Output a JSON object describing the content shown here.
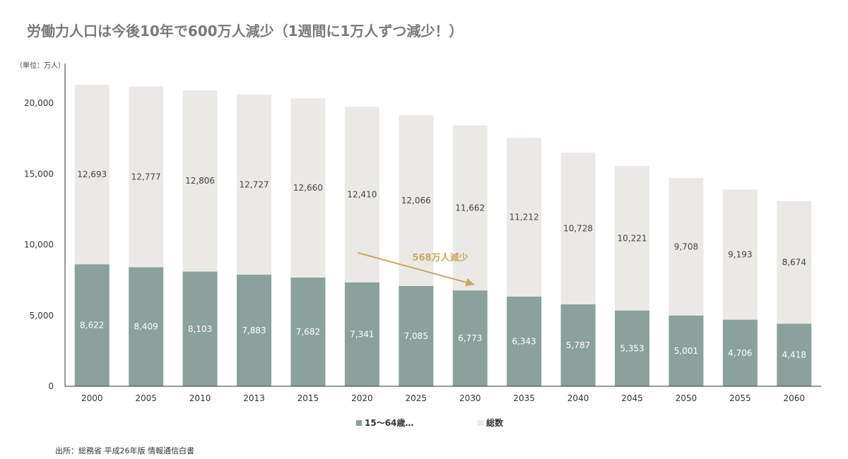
{
  "title": "労働力人口は今後10年で600万人減少（1週間に1万人ずつ減少！）",
  "unit_label": "（単位：万人）",
  "source": "出所：総務省 平成26年版 情報通信白書",
  "annotation": "568万人減少",
  "colors": {
    "workforce": "#8aa19c",
    "total": "#ebe9e6",
    "axis": "#333333",
    "annotation": "#c9a85f",
    "title": "#7a7a7a"
  },
  "chart_data": {
    "type": "bar",
    "stacked": true,
    "categories": [
      "2000",
      "2005",
      "2010",
      "2013",
      "2015",
      "2020",
      "2025",
      "2030",
      "2035",
      "2040",
      "2045",
      "2050",
      "2055",
      "2060"
    ],
    "series": [
      {
        "name": "15〜64歳…",
        "values": [
          8622,
          8409,
          8103,
          7883,
          7682,
          7341,
          7085,
          6773,
          6343,
          5787,
          5353,
          5001,
          4706,
          4418
        ]
      },
      {
        "name": "総数",
        "values": [
          12693,
          12777,
          12806,
          12727,
          12660,
          12410,
          12066,
          11662,
          11212,
          10728,
          10221,
          9708,
          9193,
          8674
        ]
      }
    ],
    "yticks": [
      "0",
      "5,000",
      "10,000",
      "15,000",
      "20,000"
    ],
    "ytick_values": [
      0,
      5000,
      10000,
      15000,
      20000
    ],
    "ylim": [
      0,
      22800
    ],
    "legend_position": "bottom",
    "grid": false
  }
}
